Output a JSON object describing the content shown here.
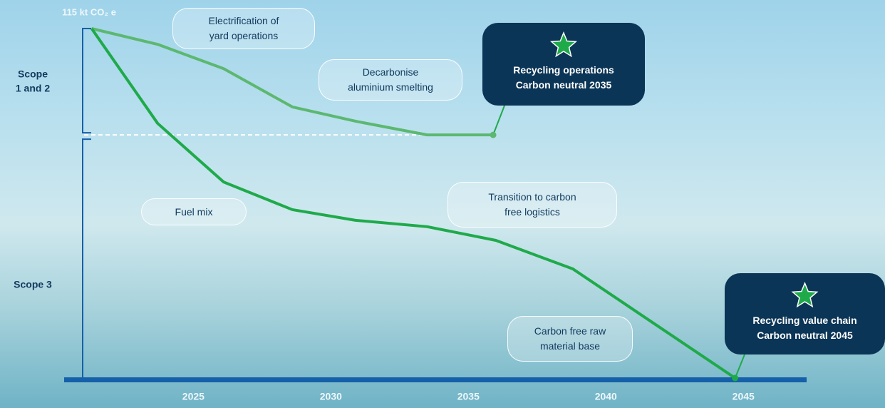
{
  "chart_data": {
    "type": "line",
    "y_label": "115 kt CO₂ e",
    "scope_labels": [
      {
        "lines": [
          "Scope",
          "1 and 2"
        ]
      },
      {
        "lines": [
          "Scope 3"
        ]
      }
    ],
    "scope_boundary": 80,
    "xlim": [
      2020.3,
      2047.3
    ],
    "ylim": [
      0,
      115
    ],
    "xticks": [
      2025,
      2030,
      2035,
      2040,
      2045
    ],
    "series": [
      {
        "color": "#5cb870",
        "x": [
          2021.3,
          2023.7,
          2026.1,
          2028.6,
          2030.9,
          2033.5,
          2035.9
        ],
        "values": [
          115,
          109.8,
          101.8,
          89.2,
          84.5,
          80,
          80
        ]
      },
      {
        "color": "#1faa4a",
        "x": [
          2021.3,
          2023.7,
          2026.1,
          2028.6,
          2030.9,
          2033.5,
          2036.0,
          2038.8,
          2044.7
        ],
        "values": [
          115,
          83.8,
          64.5,
          55.4,
          51.9,
          49.8,
          45.3,
          35.9,
          0
        ]
      }
    ],
    "annotations": [
      {
        "lines": [
          "Electrification of",
          "yard operations"
        ]
      },
      {
        "lines": [
          "Decarbonise",
          "aluminium smelting"
        ]
      },
      {
        "lines": [
          "Fuel mix"
        ]
      },
      {
        "lines": [
          "Transition to carbon",
          "free logistics"
        ]
      },
      {
        "lines": [
          "Carbon free raw",
          "material base"
        ]
      }
    ],
    "callouts": [
      {
        "lines": [
          "Recycling operations",
          "Carbon neutral  2035"
        ]
      },
      {
        "lines": [
          "Recycling value chain",
          "Carbon neutral  2045"
        ]
      }
    ]
  }
}
